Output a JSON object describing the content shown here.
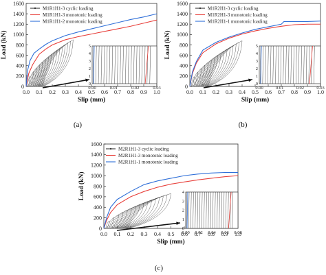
{
  "chart_data": [
    {
      "type": "line",
      "panel_label": "(a)",
      "xlabel": "Slip (mm)",
      "ylabel": "Load (kN)",
      "xlim": [
        0.0,
        1.0
      ],
      "ylim": [
        0,
        1600
      ],
      "xticks": [
        "0.0",
        "0.1",
        "0.2",
        "0.3",
        "0.4",
        "0.5",
        "0.6",
        "0.7",
        "0.8",
        "0.9",
        "1.0"
      ],
      "yticks": [
        "0",
        "200",
        "400",
        "600",
        "800",
        "1000",
        "1200",
        "1400",
        "1600"
      ],
      "legend_position": "top-left",
      "colors": {
        "cyclic": "#333333",
        "mono1": "#e8413c",
        "mono2": "#2f6fd8"
      },
      "series": [
        {
          "name": "M1R1H1-3 cyclic loading",
          "kind": "cyclic",
          "peak_x": 0.36,
          "peak_y": 900
        },
        {
          "name": "M1R1H1-3 monotonic loading",
          "kind": "mono1",
          "x": [
            0.0,
            0.02,
            0.05,
            0.1,
            0.15,
            0.2,
            0.3,
            0.4,
            0.5,
            0.6,
            0.7,
            0.8,
            0.9,
            1.0
          ],
          "y": [
            0,
            250,
            420,
            620,
            720,
            800,
            900,
            960,
            1010,
            1060,
            1110,
            1160,
            1220,
            1280
          ]
        },
        {
          "name": "M1R1H1-2 monotonic loading",
          "kind": "mono2",
          "x": [
            0.0,
            0.01,
            0.03,
            0.06,
            0.1,
            0.15,
            0.2,
            0.3,
            0.4,
            0.5,
            0.6,
            0.7,
            0.8,
            0.9,
            1.0
          ],
          "y": [
            0,
            300,
            500,
            640,
            720,
            810,
            880,
            980,
            1050,
            1110,
            1170,
            1230,
            1290,
            1340,
            1400
          ]
        }
      ],
      "inset": {
        "xlim": [
          0.0,
          0.03
        ],
        "ylim": [
          0,
          5
        ],
        "xticks": [
          "0.00",
          "0.01",
          "0.02",
          "0.03"
        ],
        "yticks": [
          "0",
          "1",
          "2",
          "3",
          "4",
          "5"
        ]
      }
    },
    {
      "type": "line",
      "panel_label": "(b)",
      "xlabel": "Slip (mm)",
      "ylabel": "Load (kN)",
      "xlim": [
        0.0,
        1.0
      ],
      "ylim": [
        0,
        1600
      ],
      "xticks": [
        "0.0",
        "0.1",
        "0.2",
        "0.3",
        "0.4",
        "0.5",
        "0.6",
        "0.7",
        "0.8",
        "0.9",
        "1.0"
      ],
      "yticks": [
        "0",
        "200",
        "400",
        "600",
        "800",
        "1000",
        "1200",
        "1400",
        "1600"
      ],
      "legend_position": "top-left",
      "colors": {
        "cyclic": "#333333",
        "mono1": "#e8413c",
        "mono2": "#2f6fd8"
      },
      "series": [
        {
          "name": "M1R2H1-3 cyclic loading",
          "kind": "cyclic",
          "peak_x": 0.4,
          "peak_y": 880
        },
        {
          "name": "M1R2H1-3 monotonic loading",
          "kind": "mono1",
          "x": [
            0.0,
            0.02,
            0.05,
            0.1,
            0.2,
            0.3,
            0.4,
            0.5,
            0.6,
            0.7,
            0.8,
            0.9,
            1.0
          ],
          "y": [
            0,
            250,
            450,
            650,
            820,
            930,
            1010,
            1070,
            1120,
            1160,
            1190,
            1200,
            1200
          ]
        },
        {
          "name": "M1R2H1-1 monotonic loading",
          "kind": "mono2",
          "x": [
            0.0,
            0.02,
            0.05,
            0.1,
            0.2,
            0.3,
            0.4,
            0.5,
            0.6,
            0.7,
            0.72,
            0.8,
            0.9,
            1.0
          ],
          "y": [
            0,
            280,
            480,
            700,
            850,
            950,
            1030,
            1100,
            1150,
            1200,
            1250,
            1250,
            1250,
            1260
          ]
        }
      ],
      "inset": {
        "xlim": [
          0.0,
          0.03
        ],
        "ylim": [
          0,
          5
        ],
        "xticks": [
          "0.00",
          "0.01",
          "0.02",
          "0.03"
        ],
        "yticks": [
          "0",
          "1",
          "2",
          "3",
          "4",
          "5"
        ]
      }
    },
    {
      "type": "line",
      "panel_label": "(c)",
      "xlabel": "Slip (mm)",
      "ylabel": "Load (kN)",
      "xlim": [
        0.0,
        1.0
      ],
      "ylim": [
        0,
        1600
      ],
      "xticks": [
        "0.0",
        "0.1",
        "0.2",
        "0.3",
        "0.4",
        "0.5",
        "0.6",
        "0.7",
        "0.8",
        "0.9",
        "1.0"
      ],
      "yticks": [
        "0",
        "200",
        "400",
        "600",
        "800",
        "1000",
        "1200",
        "1400",
        "1600"
      ],
      "legend_position": "top-left",
      "colors": {
        "cyclic": "#333333",
        "mono1": "#e8413c",
        "mono2": "#2f6fd8"
      },
      "series": [
        {
          "name": "M2R1H1-3 cyclic loading",
          "kind": "cyclic",
          "peak_x": 0.5,
          "peak_y": 660
        },
        {
          "name": "M2R1H1-3 monotonic loading",
          "kind": "mono1",
          "x": [
            0.0,
            0.02,
            0.05,
            0.1,
            0.2,
            0.3,
            0.4,
            0.5,
            0.6,
            0.7,
            0.8,
            0.9,
            1.0
          ],
          "y": [
            0,
            150,
            300,
            450,
            600,
            700,
            780,
            840,
            880,
            920,
            950,
            980,
            1000
          ]
        },
        {
          "name": "M2R1H1-1 monotonic loading",
          "kind": "mono2",
          "x": [
            0.0,
            0.02,
            0.05,
            0.1,
            0.2,
            0.3,
            0.4,
            0.5,
            0.6,
            0.7,
            0.8,
            0.9,
            1.0
          ],
          "y": [
            0,
            200,
            400,
            550,
            700,
            830,
            900,
            950,
            1000,
            1030,
            1050,
            1060,
            1060
          ]
        }
      ],
      "inset": {
        "xlim": [
          0.0,
          0.08
        ],
        "ylim": [
          0,
          4
        ],
        "xticks": [
          "0.00",
          "0.02",
          "0.04",
          "0.06",
          "0.08"
        ],
        "yticks": [
          "0",
          "1",
          "2",
          "3",
          "4"
        ]
      }
    }
  ]
}
